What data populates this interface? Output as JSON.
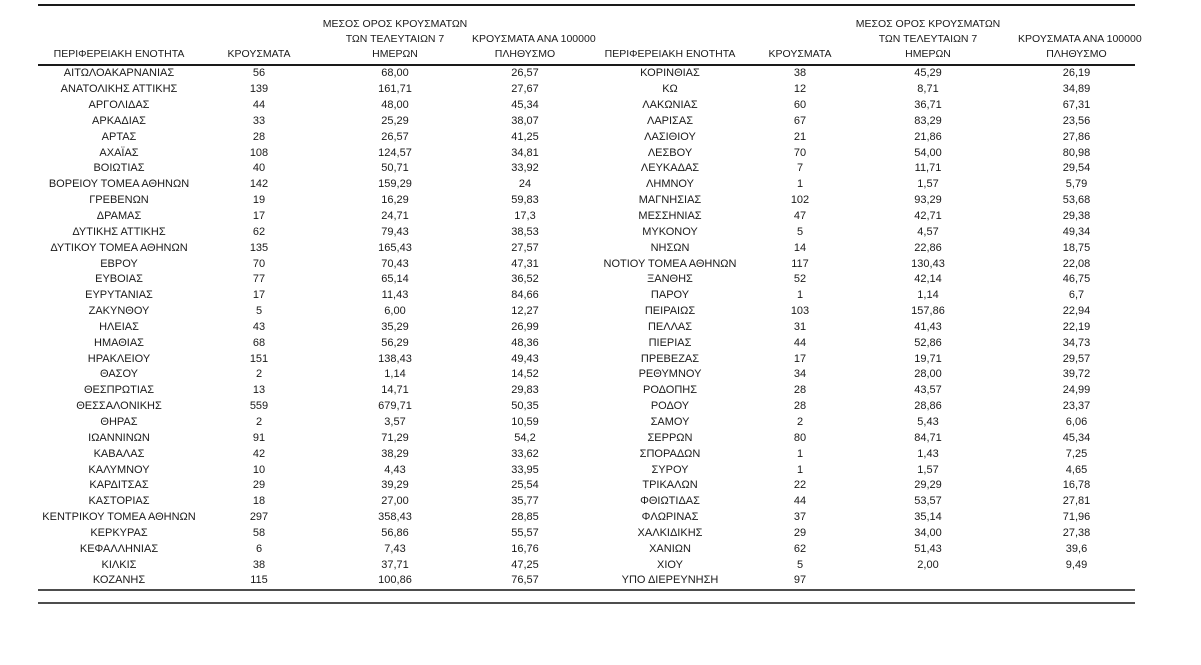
{
  "page": {
    "background": "#ffffff",
    "text_color": "#1a1a1a",
    "rule_color_dark": "#1a1a1a",
    "rule_color_gray": "#4d4d4d"
  },
  "table": {
    "headers": {
      "region": "ΠΕΡΙΦΕΡΕΙΑΚΗ ΕΝΟΤΗΤΑ",
      "cases": "ΚΡΟΥΣΜΑΤΑ",
      "avg_7day": "ΜΕΣΟΣ ΟΡΟΣ ΚΡΟΥΣΜΑΤΩΝ\nΤΩΝ ΤΕΛΕΥΤΑΙΩΝ 7\nΗΜΕΡΩΝ",
      "per_100k": "ΚΡΟΥΣΜΑΤΑ ΑΝΑ 100000\nΠΛΗΘΥΣΜΟ"
    },
    "left_rows": [
      [
        "ΑΙΤΩΛΟΑΚΑΡΝΑΝΙΑΣ",
        "56",
        "68,00",
        "26,57"
      ],
      [
        "ΑΝΑΤΟΛΙΚΗΣ ΑΤΤΙΚΗΣ",
        "139",
        "161,71",
        "27,67"
      ],
      [
        "ΑΡΓΟΛΙΔΑΣ",
        "44",
        "48,00",
        "45,34"
      ],
      [
        "ΑΡΚΑΔΙΑΣ",
        "33",
        "25,29",
        "38,07"
      ],
      [
        "ΑΡΤΑΣ",
        "28",
        "26,57",
        "41,25"
      ],
      [
        "ΑΧΑΪΑΣ",
        "108",
        "124,57",
        "34,81"
      ],
      [
        "ΒΟΙΩΤΙΑΣ",
        "40",
        "50,71",
        "33,92"
      ],
      [
        "ΒΟΡΕΙΟΥ ΤΟΜΕΑ ΑΘΗΝΩΝ",
        "142",
        "159,29",
        "24"
      ],
      [
        "ΓΡΕΒΕΝΩΝ",
        "19",
        "16,29",
        "59,83"
      ],
      [
        "ΔΡΑΜΑΣ",
        "17",
        "24,71",
        "17,3"
      ],
      [
        "ΔΥΤΙΚΗΣ ΑΤΤΙΚΗΣ",
        "62",
        "79,43",
        "38,53"
      ],
      [
        "ΔΥΤΙΚΟΥ ΤΟΜΕΑ ΑΘΗΝΩΝ",
        "135",
        "165,43",
        "27,57"
      ],
      [
        "ΕΒΡΟΥ",
        "70",
        "70,43",
        "47,31"
      ],
      [
        "ΕΥΒΟΙΑΣ",
        "77",
        "65,14",
        "36,52"
      ],
      [
        "ΕΥΡΥΤΑΝΙΑΣ",
        "17",
        "11,43",
        "84,66"
      ],
      [
        "ΖΑΚΥΝΘΟΥ",
        "5",
        "6,00",
        "12,27"
      ],
      [
        "ΗΛΕΙΑΣ",
        "43",
        "35,29",
        "26,99"
      ],
      [
        "ΗΜΑΘΙΑΣ",
        "68",
        "56,29",
        "48,36"
      ],
      [
        "ΗΡΑΚΛΕΙΟΥ",
        "151",
        "138,43",
        "49,43"
      ],
      [
        "ΘΑΣΟΥ",
        "2",
        "1,14",
        "14,52"
      ],
      [
        "ΘΕΣΠΡΩΤΙΑΣ",
        "13",
        "14,71",
        "29,83"
      ],
      [
        "ΘΕΣΣΑΛΟΝΙΚΗΣ",
        "559",
        "679,71",
        "50,35"
      ],
      [
        "ΘΗΡΑΣ",
        "2",
        "3,57",
        "10,59"
      ],
      [
        "ΙΩΑΝΝΙΝΩΝ",
        "91",
        "71,29",
        "54,2"
      ],
      [
        "ΚΑΒΑΛΑΣ",
        "42",
        "38,29",
        "33,62"
      ],
      [
        "ΚΑΛΥΜΝΟΥ",
        "10",
        "4,43",
        "33,95"
      ],
      [
        "ΚΑΡΔΙΤΣΑΣ",
        "29",
        "39,29",
        "25,54"
      ],
      [
        "ΚΑΣΤΟΡΙΑΣ",
        "18",
        "27,00",
        "35,77"
      ],
      [
        "ΚΕΝΤΡΙΚΟΥ ΤΟΜΕΑ ΑΘΗΝΩΝ",
        "297",
        "358,43",
        "28,85"
      ],
      [
        "ΚΕΡΚΥΡΑΣ",
        "58",
        "56,86",
        "55,57"
      ],
      [
        "ΚΕΦΑΛΛΗΝΙΑΣ",
        "6",
        "7,43",
        "16,76"
      ],
      [
        "ΚΙΛΚΙΣ",
        "38",
        "37,71",
        "47,25"
      ],
      [
        "ΚΟΖΑΝΗΣ",
        "115",
        "100,86",
        "76,57"
      ]
    ],
    "right_rows": [
      [
        "ΚΟΡΙΝΘΙΑΣ",
        "38",
        "45,29",
        "26,19"
      ],
      [
        "ΚΩ",
        "12",
        "8,71",
        "34,89"
      ],
      [
        "ΛΑΚΩΝΙΑΣ",
        "60",
        "36,71",
        "67,31"
      ],
      [
        "ΛΑΡΙΣΑΣ",
        "67",
        "83,29",
        "23,56"
      ],
      [
        "ΛΑΣΙΘΙΟΥ",
        "21",
        "21,86",
        "27,86"
      ],
      [
        "ΛΕΣΒΟΥ",
        "70",
        "54,00",
        "80,98"
      ],
      [
        "ΛΕΥΚΑΔΑΣ",
        "7",
        "11,71",
        "29,54"
      ],
      [
        "ΛΗΜΝΟΥ",
        "1",
        "1,57",
        "5,79"
      ],
      [
        "ΜΑΓΝΗΣΙΑΣ",
        "102",
        "93,29",
        "53,68"
      ],
      [
        "ΜΕΣΣΗΝΙΑΣ",
        "47",
        "42,71",
        "29,38"
      ],
      [
        "ΜΥΚΟΝΟΥ",
        "5",
        "4,57",
        "49,34"
      ],
      [
        "ΝΗΣΩΝ",
        "14",
        "22,86",
        "18,75"
      ],
      [
        "ΝΟΤΙΟΥ ΤΟΜΕΑ ΑΘΗΝΩΝ",
        "117",
        "130,43",
        "22,08"
      ],
      [
        "ΞΑΝΘΗΣ",
        "52",
        "42,14",
        "46,75"
      ],
      [
        "ΠΑΡΟΥ",
        "1",
        "1,14",
        "6,7"
      ],
      [
        "ΠΕΙΡΑΙΩΣ",
        "103",
        "157,86",
        "22,94"
      ],
      [
        "ΠΕΛΛΑΣ",
        "31",
        "41,43",
        "22,19"
      ],
      [
        "ΠΙΕΡΙΑΣ",
        "44",
        "52,86",
        "34,73"
      ],
      [
        "ΠΡΕΒΕΖΑΣ",
        "17",
        "19,71",
        "29,57"
      ],
      [
        "ΡΕΘΥΜΝΟΥ",
        "34",
        "28,00",
        "39,72"
      ],
      [
        "ΡΟΔΟΠΗΣ",
        "28",
        "43,57",
        "24,99"
      ],
      [
        "ΡΟΔΟΥ",
        "28",
        "28,86",
        "23,37"
      ],
      [
        "ΣΑΜΟΥ",
        "2",
        "5,43",
        "6,06"
      ],
      [
        "ΣΕΡΡΩΝ",
        "80",
        "84,71",
        "45,34"
      ],
      [
        "ΣΠΟΡΑΔΩΝ",
        "1",
        "1,43",
        "7,25"
      ],
      [
        "ΣΥΡΟΥ",
        "1",
        "1,57",
        "4,65"
      ],
      [
        "ΤΡΙΚΑΛΩΝ",
        "22",
        "29,29",
        "16,78"
      ],
      [
        "ΦΘΙΩΤΙΔΑΣ",
        "44",
        "53,57",
        "27,81"
      ],
      [
        "ΦΛΩΡΙΝΑΣ",
        "37",
        "35,14",
        "71,96"
      ],
      [
        "ΧΑΛΚΙΔΙΚΗΣ",
        "29",
        "34,00",
        "27,38"
      ],
      [
        "ΧΑΝΙΩΝ",
        "62",
        "51,43",
        "39,6"
      ],
      [
        "ΧΙΟΥ",
        "5",
        "2,00",
        "9,49"
      ],
      [
        "ΥΠΟ ΔΙΕΡΕΥΝΗΣΗ",
        "97",
        "",
        ""
      ]
    ]
  }
}
